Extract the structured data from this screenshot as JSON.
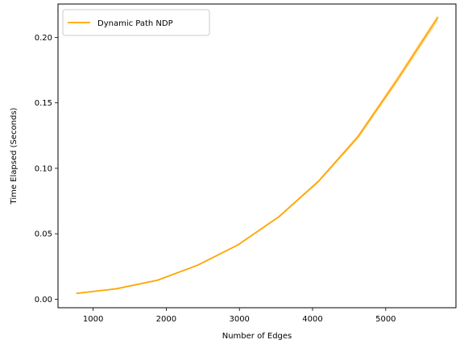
{
  "chart_data": {
    "type": "line",
    "title": "",
    "xlabel": "Number of Edges",
    "ylabel": "Time Elapsed (Seconds)",
    "xlim": [
      520,
      5960
    ],
    "ylim": [
      -0.0065,
      0.2255
    ],
    "xticks": [
      1000,
      2000,
      3000,
      4000,
      5000
    ],
    "xtick_labels": [
      "1000",
      "2000",
      "3000",
      "4000",
      "5000"
    ],
    "yticks": [
      0.0,
      0.05,
      0.1,
      0.15,
      0.2
    ],
    "ytick_labels": [
      "0.00",
      "0.05",
      "0.10",
      "0.15",
      "0.20"
    ],
    "grid": false,
    "legend_position": "upper-left",
    "series": [
      {
        "name": "Dynamic Path NDP",
        "color": "#ffa500",
        "x": [
          780,
          1320,
          1880,
          2430,
          2980,
          3540,
          4080,
          4620,
          5150,
          5710
        ],
        "y": [
          0.0045,
          0.008,
          0.0145,
          0.026,
          0.0415,
          0.063,
          0.09,
          0.124,
          0.167,
          0.215
        ],
        "band_lower": [
          0.0043,
          0.0077,
          0.0141,
          0.0255,
          0.0409,
          0.0622,
          0.0889,
          0.1222,
          0.1645,
          0.212
        ],
        "band_upper": [
          0.0047,
          0.0083,
          0.0149,
          0.0265,
          0.0421,
          0.0638,
          0.0911,
          0.1258,
          0.1695,
          0.2175
        ]
      }
    ]
  }
}
